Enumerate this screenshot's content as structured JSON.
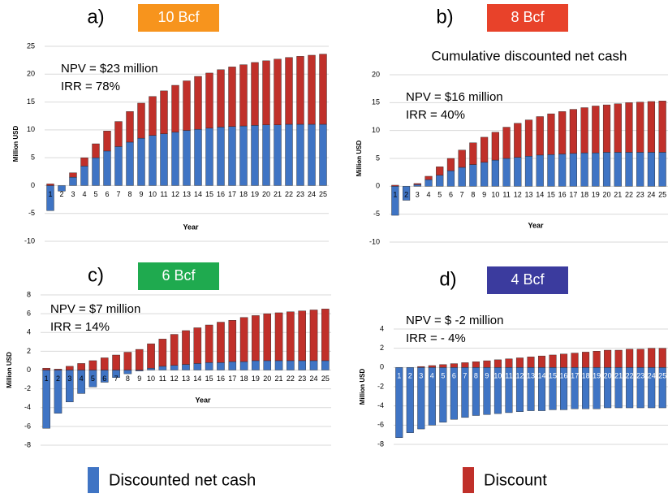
{
  "legend": [
    {
      "name": "Discounted net cash",
      "color": "#3f74c4"
    },
    {
      "name": "Discount",
      "color": "#c0302a"
    }
  ],
  "chart_data": [
    {
      "type": "bar",
      "label": "a)",
      "title": "10 Bcf",
      "title_color": "#f7941d",
      "annotations": [
        "NPV = $23 million",
        "IRR = 78%"
      ],
      "y_label": "Million USD",
      "x_label": "Year",
      "categories": [
        1,
        2,
        3,
        4,
        5,
        6,
        7,
        8,
        9,
        10,
        11,
        12,
        13,
        14,
        15,
        16,
        17,
        18,
        19,
        20,
        21,
        22,
        23,
        24,
        25
      ],
      "series": [
        {
          "color": "#3f74c4",
          "values": [
            -4.5,
            -1,
            1.5,
            3.5,
            5,
            6.2,
            7,
            7.8,
            8.5,
            9,
            9.3,
            9.6,
            9.9,
            10.1,
            10.3,
            10.5,
            10.6,
            10.7,
            10.8,
            10.9,
            10.9,
            11,
            11,
            11,
            11
          ]
        },
        {
          "color": "#c0302a",
          "values": [
            0.3,
            0,
            0.8,
            1.5,
            2.5,
            3.6,
            4.5,
            5.5,
            6.3,
            7,
            7.7,
            8.4,
            8.9,
            9.5,
            9.9,
            10.3,
            10.7,
            11,
            11.3,
            11.5,
            11.8,
            12,
            12.2,
            12.4,
            12.6
          ]
        }
      ],
      "ylim": [
        -10,
        25
      ],
      "yticks": [
        -10,
        -5,
        0,
        5,
        10,
        15,
        20,
        25
      ],
      "grid": true
    },
    {
      "type": "bar",
      "label": "b)",
      "title": "8 Bcf",
      "title_color": "#e8422a",
      "subtitle": "Cumulative discounted net cash",
      "annotations": [
        "NPV = $16 million",
        "IRR = 40%"
      ],
      "y_label": "Million USD",
      "x_label": "Year",
      "categories": [
        1,
        2,
        3,
        4,
        5,
        6,
        7,
        8,
        9,
        10,
        11,
        12,
        13,
        14,
        15,
        16,
        17,
        18,
        19,
        20,
        21,
        22,
        23,
        24,
        25
      ],
      "series": [
        {
          "color": "#3f74c4",
          "values": [
            -5.2,
            -2.5,
            0.3,
            1.2,
            2,
            2.8,
            3.4,
            3.9,
            4.3,
            4.7,
            5,
            5.2,
            5.4,
            5.6,
            5.7,
            5.8,
            5.9,
            6,
            6,
            6.1,
            6.1,
            6.1,
            6.1,
            6.1,
            6.1
          ]
        },
        {
          "color": "#c0302a",
          "values": [
            0.2,
            0,
            0.2,
            0.6,
            1.5,
            2.2,
            3.1,
            3.9,
            4.5,
            5,
            5.6,
            6.1,
            6.5,
            6.9,
            7.3,
            7.6,
            7.9,
            8.1,
            8.4,
            8.5,
            8.7,
            8.9,
            9,
            9.1,
            9.2
          ]
        }
      ],
      "ylim": [
        -10,
        20
      ],
      "yticks": [
        -10,
        -5,
        0,
        5,
        10,
        15,
        20
      ],
      "grid": true
    },
    {
      "type": "bar",
      "label": "c)",
      "title": "6 Bcf",
      "title_color": "#1faa4f",
      "annotations": [
        "NPV = $7 million",
        "IRR = 14%"
      ],
      "y_label": "Million USD",
      "x_label": "Year",
      "categories": [
        1,
        2,
        3,
        4,
        5,
        6,
        7,
        8,
        9,
        10,
        11,
        12,
        13,
        14,
        15,
        16,
        17,
        18,
        19,
        20,
        21,
        22,
        23,
        24,
        25
      ],
      "series": [
        {
          "color": "#3f74c4",
          "values": [
            -6.2,
            -4.6,
            -3.4,
            -2.5,
            -1.8,
            -1.3,
            -0.8,
            -0.4,
            -0.1,
            0.2,
            0.4,
            0.5,
            0.6,
            0.7,
            0.8,
            0.8,
            0.9,
            0.9,
            1,
            1,
            1,
            1,
            1,
            1,
            1
          ]
        },
        {
          "color": "#c0302a",
          "values": [
            0.2,
            0.1,
            0.4,
            0.7,
            1,
            1.3,
            1.6,
            1.9,
            2.2,
            2.6,
            2.9,
            3.3,
            3.6,
            3.8,
            4,
            4.3,
            4.4,
            4.7,
            4.8,
            5,
            5.1,
            5.2,
            5.3,
            5.4,
            5.5
          ]
        }
      ],
      "ylim": [
        -8,
        8
      ],
      "yticks": [
        -8,
        -6,
        -4,
        -2,
        0,
        2,
        4,
        6,
        8
      ],
      "grid": true
    },
    {
      "type": "bar",
      "label": "d)",
      "title": "4 Bcf",
      "title_color": "#3b3b9e",
      "annotations": [
        "NPV = $ -2 million",
        "IRR = - 4%"
      ],
      "y_label": "Million USD",
      "categories": [
        1,
        2,
        3,
        4,
        5,
        6,
        7,
        8,
        9,
        10,
        11,
        12,
        13,
        14,
        15,
        16,
        17,
        18,
        19,
        20,
        21,
        22,
        23,
        24,
        25
      ],
      "series": [
        {
          "color": "#3f74c4",
          "values": [
            -7.3,
            -6.8,
            -6.4,
            -6,
            -5.7,
            -5.4,
            -5.2,
            -5,
            -4.9,
            -4.8,
            -4.7,
            -4.6,
            -4.5,
            -4.5,
            -4.4,
            -4.4,
            -4.3,
            -4.3,
            -4.3,
            -4.2,
            -4.2,
            -4.2,
            -4.2,
            -4.2,
            -4.2
          ]
        },
        {
          "color": "#c0302a",
          "values": [
            0,
            0,
            0.1,
            0.2,
            0.3,
            0.4,
            0.5,
            0.6,
            0.7,
            0.8,
            0.9,
            1,
            1.1,
            1.2,
            1.3,
            1.4,
            1.5,
            1.6,
            1.7,
            1.8,
            1.8,
            1.9,
            1.9,
            2,
            2
          ]
        }
      ],
      "ylim": [
        -8,
        4
      ],
      "yticks": [
        -8,
        -6,
        -4,
        -2,
        0,
        2,
        4
      ],
      "grid": true
    }
  ]
}
